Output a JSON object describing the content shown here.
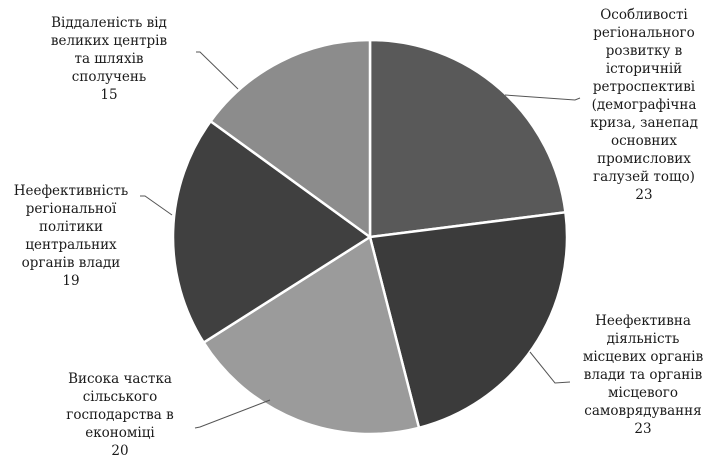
{
  "chart_data": {
    "type": "pie",
    "title": "",
    "slices": [
      {
        "label_lines": [
          "Особливості",
          "регіонального",
          "розвитку в",
          "історичній",
          "ретроспективі",
          "(демографічна",
          "криза, занепад",
          "основних",
          "промислових",
          "галузей тощо)"
        ],
        "value": 23,
        "value_text": "23",
        "color": "#595959"
      },
      {
        "label_lines": [
          "Неефективна",
          "діяльність",
          "місцевих органів",
          "влади та органів",
          "місцевого",
          "самоврядування"
        ],
        "value": 23,
        "value_text": "23",
        "color": "#3b3b3b"
      },
      {
        "label_lines": [
          "Висока  частка",
          "сільського",
          "господарства в",
          "економіці"
        ],
        "value": 20,
        "value_text": "20",
        "color": "#9b9b9b"
      },
      {
        "label_lines": [
          "Неефективність",
          "регіональної",
          "політики",
          "центральних",
          "органів влади"
        ],
        "value": 19,
        "value_text": "19",
        "color": "#404040"
      },
      {
        "label_lines": [
          "Віддаленість від",
          "великих центрів",
          "та шляхів",
          "сполучень"
        ],
        "value": 15,
        "value_text": "15",
        "color": "#8c8c8c"
      }
    ],
    "start_angle_deg": 0,
    "direction": "clockwise",
    "legend": "none",
    "data_labels": "outside with leader lines"
  }
}
